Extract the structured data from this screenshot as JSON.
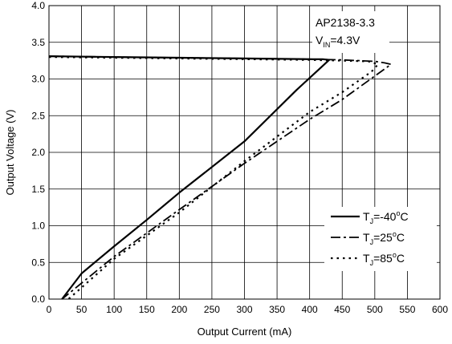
{
  "chart_data": {
    "type": "line",
    "xlabel": "Output Current (mA)",
    "ylabel": "Output Voltage (V)",
    "xlim": [
      0,
      600
    ],
    "ylim": [
      0.0,
      4.0
    ],
    "x_ticks": [
      0,
      50,
      100,
      150,
      200,
      250,
      300,
      350,
      400,
      450,
      500,
      550,
      600
    ],
    "x_tick_labels": [
      "0",
      "50",
      "100",
      "150",
      "200",
      "250",
      "300",
      "350",
      "400",
      "450",
      "500",
      "550",
      "600"
    ],
    "y_ticks": [
      0.0,
      0.5,
      1.0,
      1.5,
      2.0,
      2.5,
      3.0,
      3.5,
      4.0
    ],
    "y_tick_labels": [
      "0.0",
      "0.5",
      "1.0",
      "1.5",
      "2.0",
      "2.5",
      "3.0",
      "3.5",
      "4.0"
    ],
    "grid": true,
    "legend_position": "bottom-right",
    "annotation": {
      "line1": "AP2138-3.3",
      "v": "V",
      "v_sub": "IN",
      "v_rest": "=4.3V"
    },
    "series": [
      {
        "legend_t": "T",
        "legend_sub": "J",
        "legend_rest": "=-40",
        "legend_unit": "C",
        "degree": "o",
        "style": "solid",
        "x": [
          0,
          100,
          200,
          300,
          400,
          420,
          430,
          425,
          380,
          300,
          200,
          150,
          100,
          50,
          20
        ],
        "y": [
          3.31,
          3.3,
          3.29,
          3.28,
          3.27,
          3.27,
          3.26,
          3.22,
          2.85,
          2.15,
          1.45,
          1.08,
          0.72,
          0.35,
          0.0
        ]
      },
      {
        "legend_t": "T",
        "legend_sub": "J",
        "legend_rest": "=25",
        "legend_unit": "C",
        "degree": "o",
        "style": "dashdot",
        "x": [
          0,
          100,
          200,
          300,
          400,
          450,
          500,
          515,
          525,
          450,
          400,
          300,
          200,
          100,
          20
        ],
        "y": [
          3.31,
          3.3,
          3.29,
          3.28,
          3.27,
          3.26,
          3.24,
          3.22,
          3.2,
          2.72,
          2.45,
          1.85,
          1.22,
          0.58,
          0.0
        ]
      },
      {
        "legend_t": "T",
        "legend_sub": "J",
        "legend_rest": "=85",
        "legend_unit": "C",
        "degree": "o",
        "style": "dotted",
        "x": [
          0,
          100,
          200,
          300,
          400,
          450,
          490,
          505,
          495,
          450,
          400,
          300,
          200,
          100,
          30
        ],
        "y": [
          3.3,
          3.29,
          3.28,
          3.27,
          3.26,
          3.25,
          3.24,
          3.2,
          3.1,
          2.82,
          2.55,
          1.88,
          1.18,
          0.55,
          0.0
        ]
      }
    ]
  }
}
